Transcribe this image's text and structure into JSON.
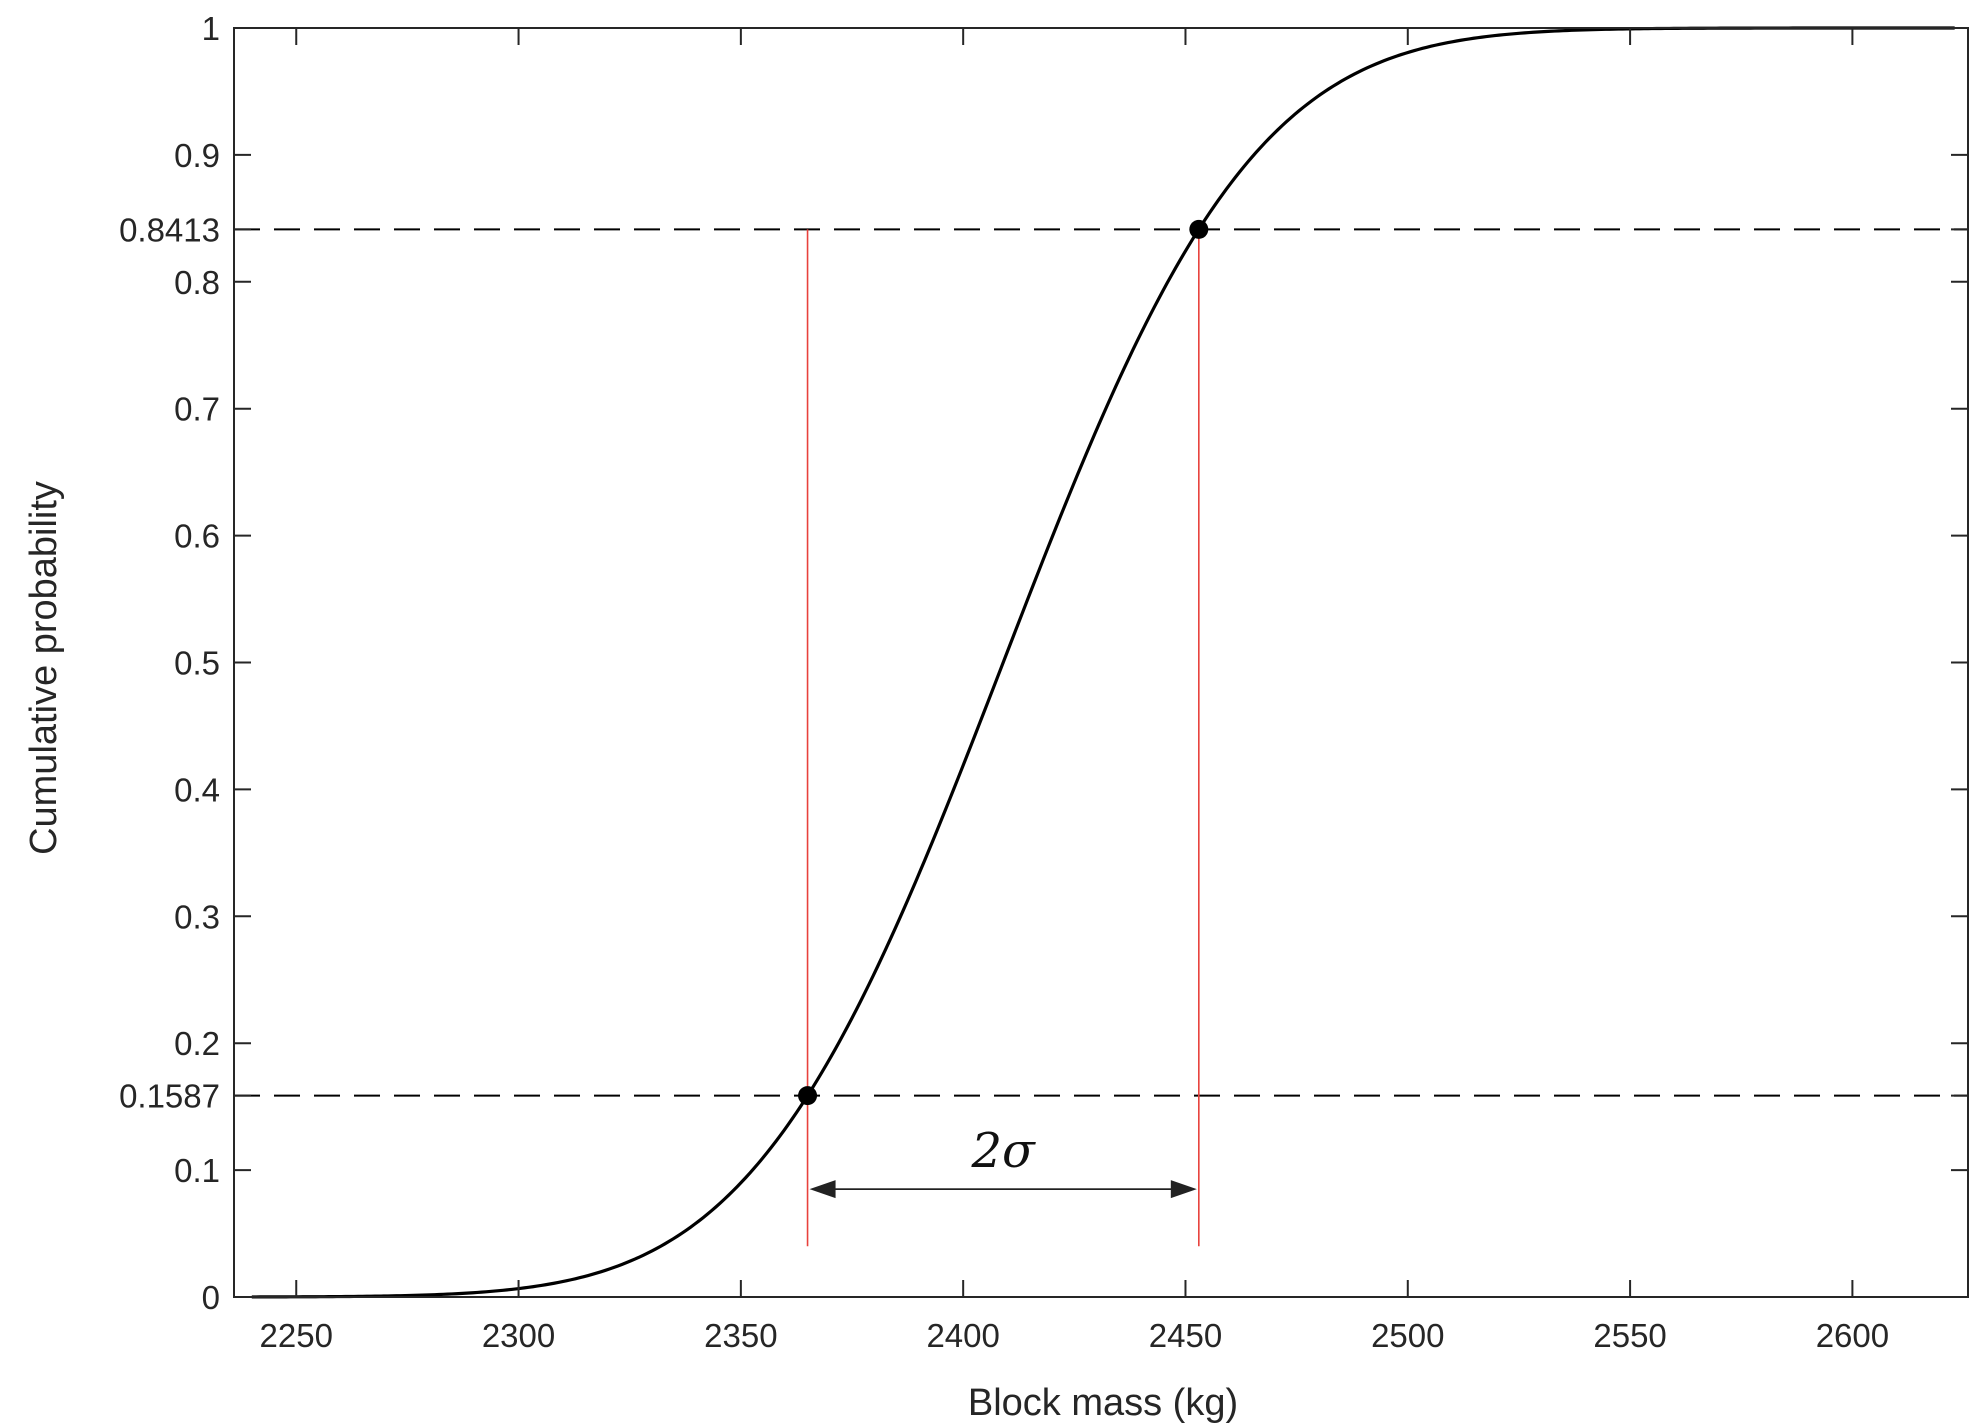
{
  "chart_data": {
    "type": "line",
    "title": "",
    "xlabel": "Block mass (kg)",
    "ylabel": "Cumulative probability",
    "xlim": [
      2236,
      2626
    ],
    "ylim": [
      0,
      1
    ],
    "grid": false,
    "legend": "none",
    "x_ticks": [
      2250,
      2300,
      2350,
      2400,
      2450,
      2500,
      2550,
      2600
    ],
    "y_ticks": [
      0,
      0.1,
      0.1587,
      0.2,
      0.3,
      0.4,
      0.5,
      0.6,
      0.7,
      0.8,
      0.8413,
      0.9,
      1
    ],
    "y_tick_labels": [
      "0",
      "0.1",
      "0.1587",
      "0.2",
      "0.3",
      "0.4",
      "0.5",
      "0.6",
      "0.7",
      "0.8",
      "0.8413",
      "0.9",
      "1"
    ],
    "series": [
      {
        "color": "#000000",
        "x_range": [
          2240,
          2623
        ],
        "mean": 2409,
        "sigma": 44,
        "x": [
          2240,
          2260,
          2280,
          2300,
          2320,
          2340,
          2365,
          2380,
          2400,
          2409,
          2420,
          2440,
          2453,
          2470,
          2490,
          2510,
          2530,
          2560,
          2623
        ],
        "y": [
          0.0001,
          0.0004,
          0.0017,
          0.0067,
          0.0215,
          0.0584,
          0.1587,
          0.2549,
          0.4191,
          0.5,
          0.5987,
          0.7611,
          0.8413,
          0.9174,
          0.9674,
          0.9889,
          0.9968,
          0.9997,
          1.0
        ]
      }
    ],
    "markers": [
      {
        "x": 2365,
        "y": 0.1587
      },
      {
        "x": 2453,
        "y": 0.8413
      }
    ],
    "reference_lines": {
      "horizontal_dashed": [
        0.1587,
        0.8413
      ],
      "vertical_red": [
        2365,
        2453
      ],
      "red_color": "#e8413c",
      "vertical_y_range": [
        0.04,
        0.8413
      ]
    },
    "annotations": [
      {
        "text": "2σ",
        "type": "double-arrow",
        "x_from": 2365,
        "x_to": 2453,
        "y": 0.085
      }
    ]
  }
}
